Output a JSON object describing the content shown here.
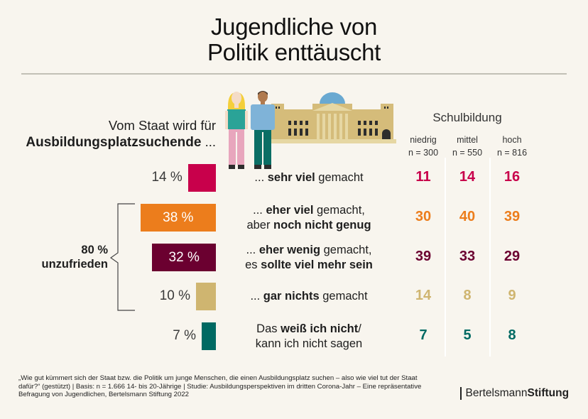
{
  "header": {
    "title_line1": "Jugendliche von",
    "title_line2": "Politik enttäuscht"
  },
  "question": {
    "line1": "Vom Staat wird für",
    "line2_bold": "Ausbildungsplatzsuchende",
    "line2_tail": " ..."
  },
  "groups": {
    "title": "Schulbildung",
    "columns": [
      {
        "label": "niedrig",
        "n": "n = 300"
      },
      {
        "label": "mittel",
        "n": "n = 550"
      },
      {
        "label": "hoch",
        "n": "n = 816"
      }
    ]
  },
  "bracket": {
    "pct": "80 %",
    "label": "unzufrieden"
  },
  "chart_data": {
    "type": "bar",
    "title": "Jugendliche von Politik enttäuscht",
    "orientation": "horizontal",
    "unit": "%",
    "categories": [
      "... sehr viel gemacht",
      "... eher viel gemacht, aber noch nicht genug",
      "... eher wenig gemacht, es sollte viel mehr sein",
      "... gar nichts gemacht",
      "Das weiß ich nicht/ kann ich nicht sagen"
    ],
    "values": [
      14,
      38,
      32,
      10,
      7
    ],
    "value_labels": [
      "14 %",
      "38 %",
      "32 %",
      "10 %",
      "7 %"
    ],
    "colors": [
      "#c8004b",
      "#ec7d1c",
      "#6b0030",
      "#cfb570",
      "#006a63"
    ],
    "label_inside": [
      false,
      true,
      true,
      false,
      false
    ],
    "annotation": "80 % unzufrieden (38 % + 32 % + 10 %)",
    "table": {
      "title": "Schulbildung",
      "columns": [
        "niedrig (n = 300)",
        "mittel (n = 550)",
        "hoch (n = 816)"
      ],
      "rows": [
        [
          11,
          14,
          16
        ],
        [
          30,
          40,
          39
        ],
        [
          39,
          33,
          29
        ],
        [
          14,
          8,
          9
        ],
        [
          7,
          5,
          8
        ]
      ]
    }
  },
  "answers": [
    {
      "parts": [
        {
          "t": "... ",
          "b": false
        },
        {
          "t": "sehr viel",
          "b": true
        },
        {
          "t": " gemacht",
          "b": false
        }
      ]
    },
    {
      "parts": [
        {
          "t": "... ",
          "b": false
        },
        {
          "t": "eher viel",
          "b": true
        },
        {
          "t": " gemacht,",
          "b": false
        },
        {
          "br": true
        },
        {
          "t": "aber ",
          "b": false
        },
        {
          "t": "noch nicht genug",
          "b": true
        }
      ]
    },
    {
      "parts": [
        {
          "t": "... ",
          "b": false
        },
        {
          "t": "eher wenig",
          "b": true
        },
        {
          "t": " gemacht,",
          "b": false
        },
        {
          "br": true
        },
        {
          "t": "es ",
          "b": false
        },
        {
          "t": "sollte viel mehr sein",
          "b": true
        }
      ]
    },
    {
      "parts": [
        {
          "t": "... ",
          "b": false
        },
        {
          "t": "gar nichts",
          "b": true
        },
        {
          "t": " gemacht",
          "b": false
        }
      ]
    },
    {
      "parts": [
        {
          "t": "Das ",
          "b": false
        },
        {
          "t": "weiß ich nicht",
          "b": true
        },
        {
          "t": "/",
          "b": false
        },
        {
          "br": true
        },
        {
          "t": "kann ich nicht sagen",
          "b": false
        }
      ]
    }
  ],
  "footer": {
    "footnote": "„Wie gut kümmert sich der Staat bzw. die Politik um junge Menschen, die einen Ausbildungsplatz suchen – also wie viel tut der Staat dafür?“ (gestützt) | Basis: n = 1.666 14- bis 20-Jährige | Studie: Ausbildungsperspektiven im dritten Corona-Jahr – Eine repräsentative Befragung von Jugendlichen, Bertelsmann Stiftung 2022",
    "logo_regular": "Bertelsmann",
    "logo_bold": "Stiftung"
  },
  "illustration": {
    "icons": [
      "person-woman-icon",
      "person-man-icon",
      "reichstag-building-icon"
    ],
    "colors": {
      "gold": "#d5bc7a",
      "light_gold": "#e6d7a3",
      "dome": "#6aa9d1",
      "window": "#2d2d2d"
    }
  }
}
